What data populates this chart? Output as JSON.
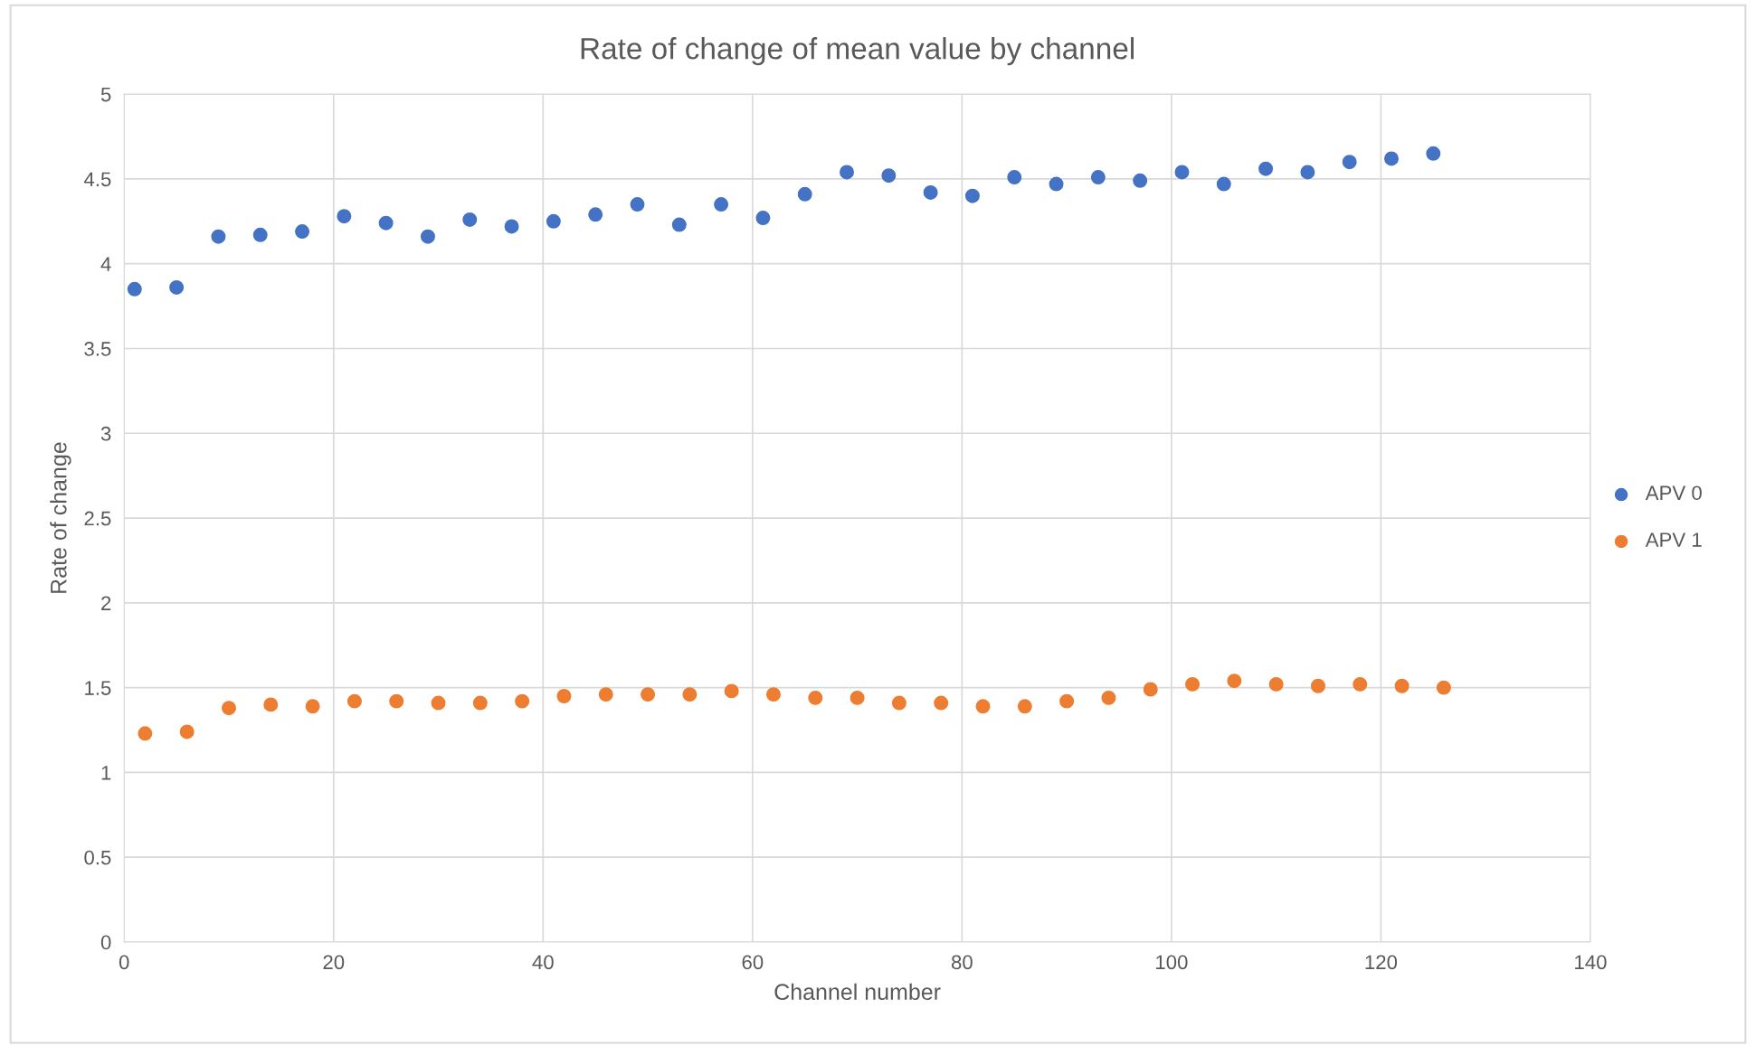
{
  "chart_data": {
    "type": "scatter",
    "title": "Rate of change of mean value by channel",
    "xlabel": "Channel number",
    "ylabel": "Rate of change",
    "series": [
      {
        "name": "APV 0",
        "color": "#4472c4",
        "x": [
          1,
          5,
          9,
          13,
          17,
          21,
          25,
          29,
          33,
          37,
          41,
          45,
          49,
          53,
          57,
          61,
          65,
          69,
          73,
          77,
          81,
          85,
          89,
          93,
          97,
          101,
          105,
          109,
          113,
          117,
          121,
          125
        ],
        "values": [
          3.85,
          3.86,
          4.16,
          4.17,
          4.19,
          4.28,
          4.24,
          4.16,
          4.26,
          4.22,
          4.25,
          4.29,
          4.35,
          4.23,
          4.35,
          4.27,
          4.41,
          4.54,
          4.52,
          4.42,
          4.4,
          4.51,
          4.47,
          4.51,
          4.49,
          4.54,
          4.47,
          4.56,
          4.54,
          4.6,
          4.62,
          4.65
        ]
      },
      {
        "name": "APV 1",
        "color": "#ed7d31",
        "x": [
          2,
          6,
          10,
          14,
          18,
          22,
          26,
          30,
          34,
          38,
          42,
          46,
          50,
          54,
          58,
          62,
          66,
          70,
          74,
          78,
          82,
          86,
          90,
          94,
          98,
          102,
          106,
          110,
          114,
          118,
          122,
          126
        ],
        "values": [
          1.23,
          1.24,
          1.38,
          1.4,
          1.39,
          1.42,
          1.42,
          1.41,
          1.41,
          1.42,
          1.45,
          1.46,
          1.46,
          1.46,
          1.48,
          1.46,
          1.44,
          1.44,
          1.41,
          1.41,
          1.39,
          1.39,
          1.42,
          1.44,
          1.49,
          1.52,
          1.54,
          1.52,
          1.51,
          1.52,
          1.51,
          1.5
        ]
      }
    ],
    "xlim": [
      0,
      140
    ],
    "xticks": [
      0,
      20,
      40,
      60,
      80,
      100,
      120,
      140
    ],
    "ylim": [
      0,
      5
    ],
    "yticks": [
      0,
      0.5,
      1,
      1.5,
      2,
      2.5,
      3,
      3.5,
      4,
      4.5,
      5
    ],
    "grid": true,
    "legend": "right",
    "marker": "circle"
  }
}
